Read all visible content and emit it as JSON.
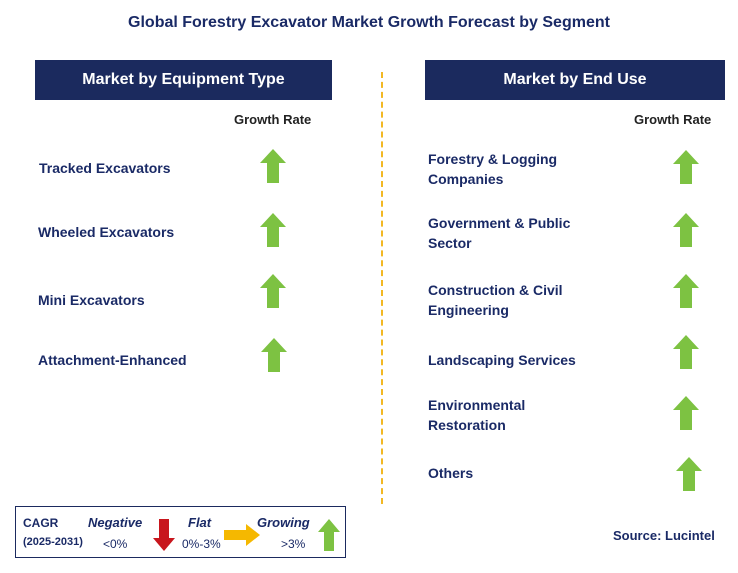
{
  "title": "Global Forestry Excavator Market Growth Forecast by Segment",
  "left_panel": {
    "header": "Market by Equipment Type",
    "column_label": "Growth Rate",
    "segments": [
      {
        "label": "Tracked Excavators",
        "trend": "growing"
      },
      {
        "label": "Wheeled Excavators",
        "trend": "growing"
      },
      {
        "label": "Mini Excavators",
        "trend": "growing"
      },
      {
        "label": "Attachment-Enhanced",
        "trend": "growing"
      }
    ]
  },
  "right_panel": {
    "header": "Market by End Use",
    "column_label": "Growth Rate",
    "segments": [
      {
        "label_line1": "Forestry & Logging",
        "label_line2": "Companies",
        "trend": "growing"
      },
      {
        "label_line1": "Government & Public",
        "label_line2": "Sector",
        "trend": "growing"
      },
      {
        "label_line1": "Construction & Civil",
        "label_line2": "Engineering",
        "trend": "growing"
      },
      {
        "label_line1": "Landscaping Services",
        "label_line2": "",
        "trend": "growing"
      },
      {
        "label_line1": "Environmental",
        "label_line2": "Restoration",
        "trend": "growing"
      },
      {
        "label_line1": "Others",
        "label_line2": "",
        "trend": "growing"
      }
    ]
  },
  "legend": {
    "cagr_label": "CAGR",
    "period": "(2025-2031)",
    "negative_label": "Negative",
    "negative_range": "<0%",
    "flat_label": "Flat",
    "flat_range": "0%-3%",
    "growing_label": "Growing",
    "growing_range": ">3%"
  },
  "source": "Source: Lucintel",
  "colors": {
    "header_bg": "#1b2a5e",
    "growing": "#7dc242",
    "negative": "#c8161d",
    "flat": "#f5b800",
    "divider": "#f2b824"
  }
}
